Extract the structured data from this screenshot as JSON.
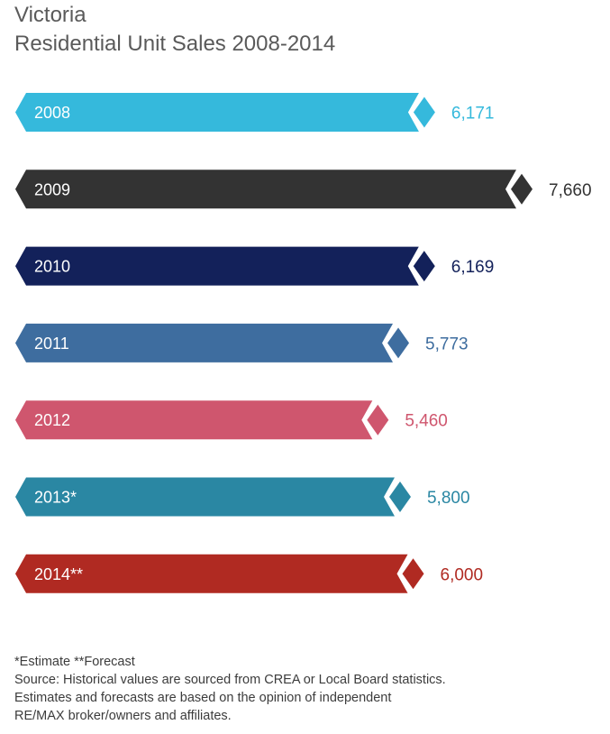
{
  "title": "Victoria",
  "subtitle": "Residential Unit Sales 2008-2014",
  "chart_data": {
    "type": "bar",
    "orientation": "horizontal",
    "title": "Victoria",
    "subtitle": "Residential Unit Sales 2008-2014",
    "categories": [
      "2008",
      "2009",
      "2010",
      "2011",
      "2012",
      "2013*",
      "2014**"
    ],
    "values": [
      6171,
      7660,
      6169,
      5773,
      5460,
      5800,
      6000
    ],
    "value_labels": [
      "6,171",
      "7,660",
      "6,169",
      "5,773",
      "5,460",
      "5,800",
      "6,000"
    ],
    "colors": [
      "#35b9dc",
      "#333333",
      "#13215a",
      "#3e6d9f",
      "#cf566e",
      "#2a87a3",
      "#b02a22"
    ],
    "grid": false,
    "legend": "none"
  },
  "footnotes": [
    "*Estimate **Forecast",
    "Source: Historical values are sourced from CREA or Local Board statistics.",
    "Estimates and forecasts are based on the opinion of independent",
    "RE/MAX broker/owners and affiliates."
  ]
}
